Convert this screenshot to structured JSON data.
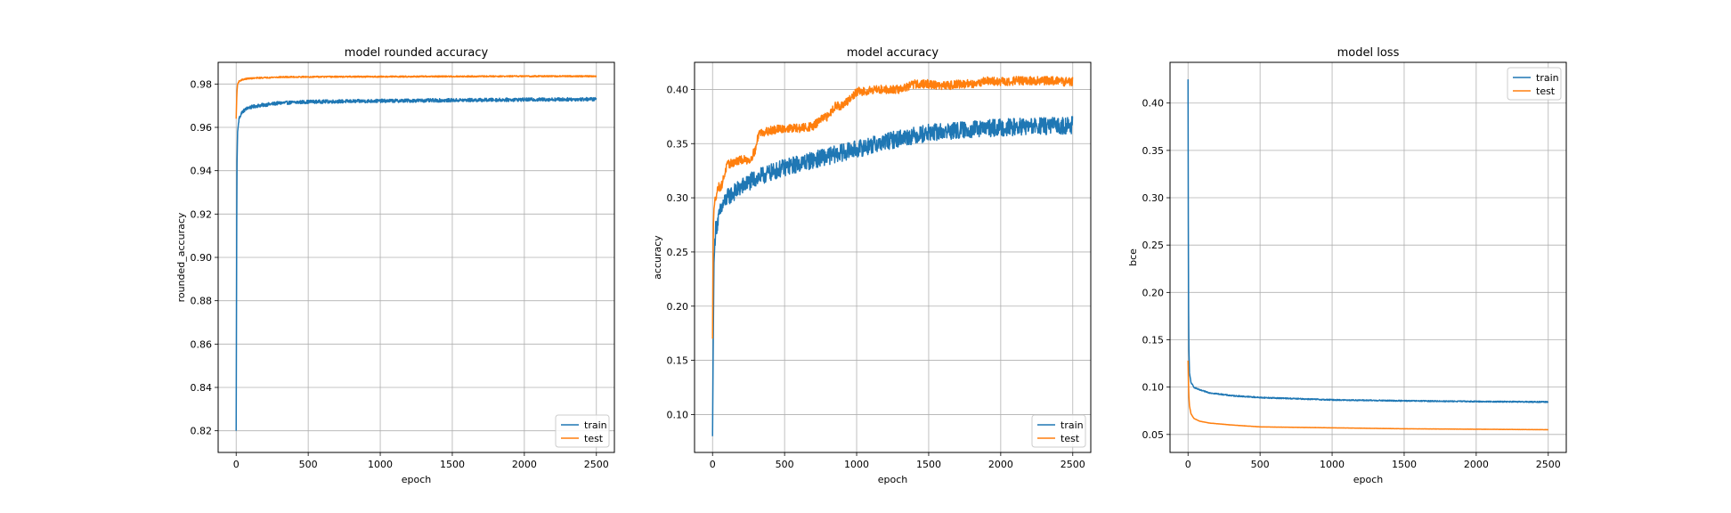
{
  "chart_data": [
    {
      "type": "line",
      "title": "model rounded accuracy",
      "xlabel": "epoch",
      "ylabel": "rounded_accuracy",
      "xlim": [
        -125,
        2625
      ],
      "ylim": [
        0.81,
        0.99
      ],
      "xticks": [
        0,
        500,
        1000,
        1500,
        2000,
        2500
      ],
      "xtick_labels": [
        "0",
        "500",
        "1000",
        "1500",
        "2000",
        "2500"
      ],
      "yticks": [
        0.82,
        0.84,
        0.86,
        0.88,
        0.9,
        0.92,
        0.94,
        0.96,
        0.98
      ],
      "ytick_labels": [
        "0.82",
        "0.84",
        "0.86",
        "0.88",
        "0.90",
        "0.92",
        "0.94",
        "0.96",
        "0.98"
      ],
      "grid": true,
      "legend": "lower-right",
      "series": [
        {
          "name": "train",
          "color": "#1f77b4",
          "x": [
            0,
            5,
            10,
            20,
            40,
            80,
            150,
            300,
            500,
            1000,
            1500,
            2000,
            2500
          ],
          "y": [
            0.82,
            0.94,
            0.958,
            0.964,
            0.967,
            0.969,
            0.97,
            0.9712,
            0.9718,
            0.9722,
            0.9725,
            0.9728,
            0.973
          ],
          "noise": 0.0008
        },
        {
          "name": "test",
          "color": "#ff7f0e",
          "x": [
            0,
            5,
            10,
            20,
            40,
            80,
            150,
            300,
            500,
            1000,
            1500,
            2000,
            2500
          ],
          "y": [
            0.964,
            0.976,
            0.98,
            0.9812,
            0.982,
            0.9825,
            0.9828,
            0.9832,
            0.9833,
            0.9834,
            0.9835,
            0.9836,
            0.9836
          ],
          "noise": 0.0003
        }
      ]
    },
    {
      "type": "line",
      "title": "model accuracy",
      "xlabel": "epoch",
      "ylabel": "accuracy",
      "xlim": [
        -125,
        2625
      ],
      "ylim": [
        0.065,
        0.425
      ],
      "xticks": [
        0,
        500,
        1000,
        1500,
        2000,
        2500
      ],
      "xtick_labels": [
        "0",
        "500",
        "1000",
        "1500",
        "2000",
        "2500"
      ],
      "yticks": [
        0.1,
        0.15,
        0.2,
        0.25,
        0.3,
        0.35,
        0.4
      ],
      "ytick_labels": [
        "0.10",
        "0.15",
        "0.20",
        "0.25",
        "0.30",
        "0.35",
        "0.40"
      ],
      "grid": true,
      "legend": "lower-right",
      "series": [
        {
          "name": "train",
          "color": "#1f77b4",
          "x": [
            0,
            5,
            10,
            20,
            40,
            60,
            100,
            200,
            300,
            500,
            700,
            1000,
            1300,
            1500,
            1800,
            2000,
            2300,
            2500
          ],
          "y": [
            0.08,
            0.17,
            0.24,
            0.27,
            0.28,
            0.29,
            0.3,
            0.31,
            0.318,
            0.328,
            0.335,
            0.345,
            0.355,
            0.36,
            0.363,
            0.365,
            0.366,
            0.367
          ],
          "noise": 0.008
        },
        {
          "name": "test",
          "color": "#ff7f0e",
          "x": [
            0,
            5,
            10,
            20,
            40,
            60,
            100,
            150,
            200,
            260,
            300,
            320,
            400,
            500,
            600,
            700,
            750,
            800,
            850,
            900,
            950,
            1000,
            1050,
            1100,
            1200,
            1300,
            1400,
            1500,
            1600,
            1700,
            1800,
            1900,
            2000,
            2100,
            2200,
            2300,
            2400,
            2450,
            2500
          ],
          "y": [
            0.17,
            0.27,
            0.29,
            0.3,
            0.31,
            0.31,
            0.33,
            0.333,
            0.335,
            0.335,
            0.345,
            0.36,
            0.362,
            0.364,
            0.364,
            0.366,
            0.372,
            0.375,
            0.385,
            0.385,
            0.39,
            0.398,
            0.398,
            0.4,
            0.4,
            0.4,
            0.405,
            0.405,
            0.403,
            0.405,
            0.405,
            0.408,
            0.407,
            0.408,
            0.408,
            0.408,
            0.408,
            0.407,
            0.407
          ],
          "noise": 0.004
        }
      ]
    },
    {
      "type": "line",
      "title": "model loss",
      "xlabel": "epoch",
      "ylabel": "bce",
      "xlim": [
        -125,
        2625
      ],
      "ylim": [
        0.031,
        0.443
      ],
      "xticks": [
        0,
        500,
        1000,
        1500,
        2000,
        2500
      ],
      "xtick_labels": [
        "0",
        "500",
        "1000",
        "1500",
        "2000",
        "2500"
      ],
      "yticks": [
        0.05,
        0.1,
        0.15,
        0.2,
        0.25,
        0.3,
        0.35,
        0.4
      ],
      "ytick_labels": [
        "0.05",
        "0.10",
        "0.15",
        "0.20",
        "0.25",
        "0.30",
        "0.35",
        "0.40"
      ],
      "grid": true,
      "legend": "upper-right",
      "series": [
        {
          "name": "train",
          "color": "#1f77b4",
          "x": [
            0,
            3,
            6,
            10,
            20,
            40,
            80,
            150,
            300,
            500,
            1000,
            1500,
            2000,
            2500
          ],
          "y": [
            0.425,
            0.2,
            0.14,
            0.115,
            0.105,
            0.1,
            0.097,
            0.094,
            0.091,
            0.089,
            0.0865,
            0.0855,
            0.0848,
            0.0843
          ],
          "noise": 0.0006
        },
        {
          "name": "test",
          "color": "#ff7f0e",
          "x": [
            0,
            3,
            6,
            10,
            20,
            40,
            80,
            150,
            300,
            500,
            1000,
            1500,
            2000,
            2500
          ],
          "y": [
            0.128,
            0.105,
            0.09,
            0.08,
            0.072,
            0.067,
            0.064,
            0.062,
            0.06,
            0.058,
            0.057,
            0.056,
            0.0555,
            0.055
          ],
          "noise": 0.0001
        }
      ]
    }
  ]
}
